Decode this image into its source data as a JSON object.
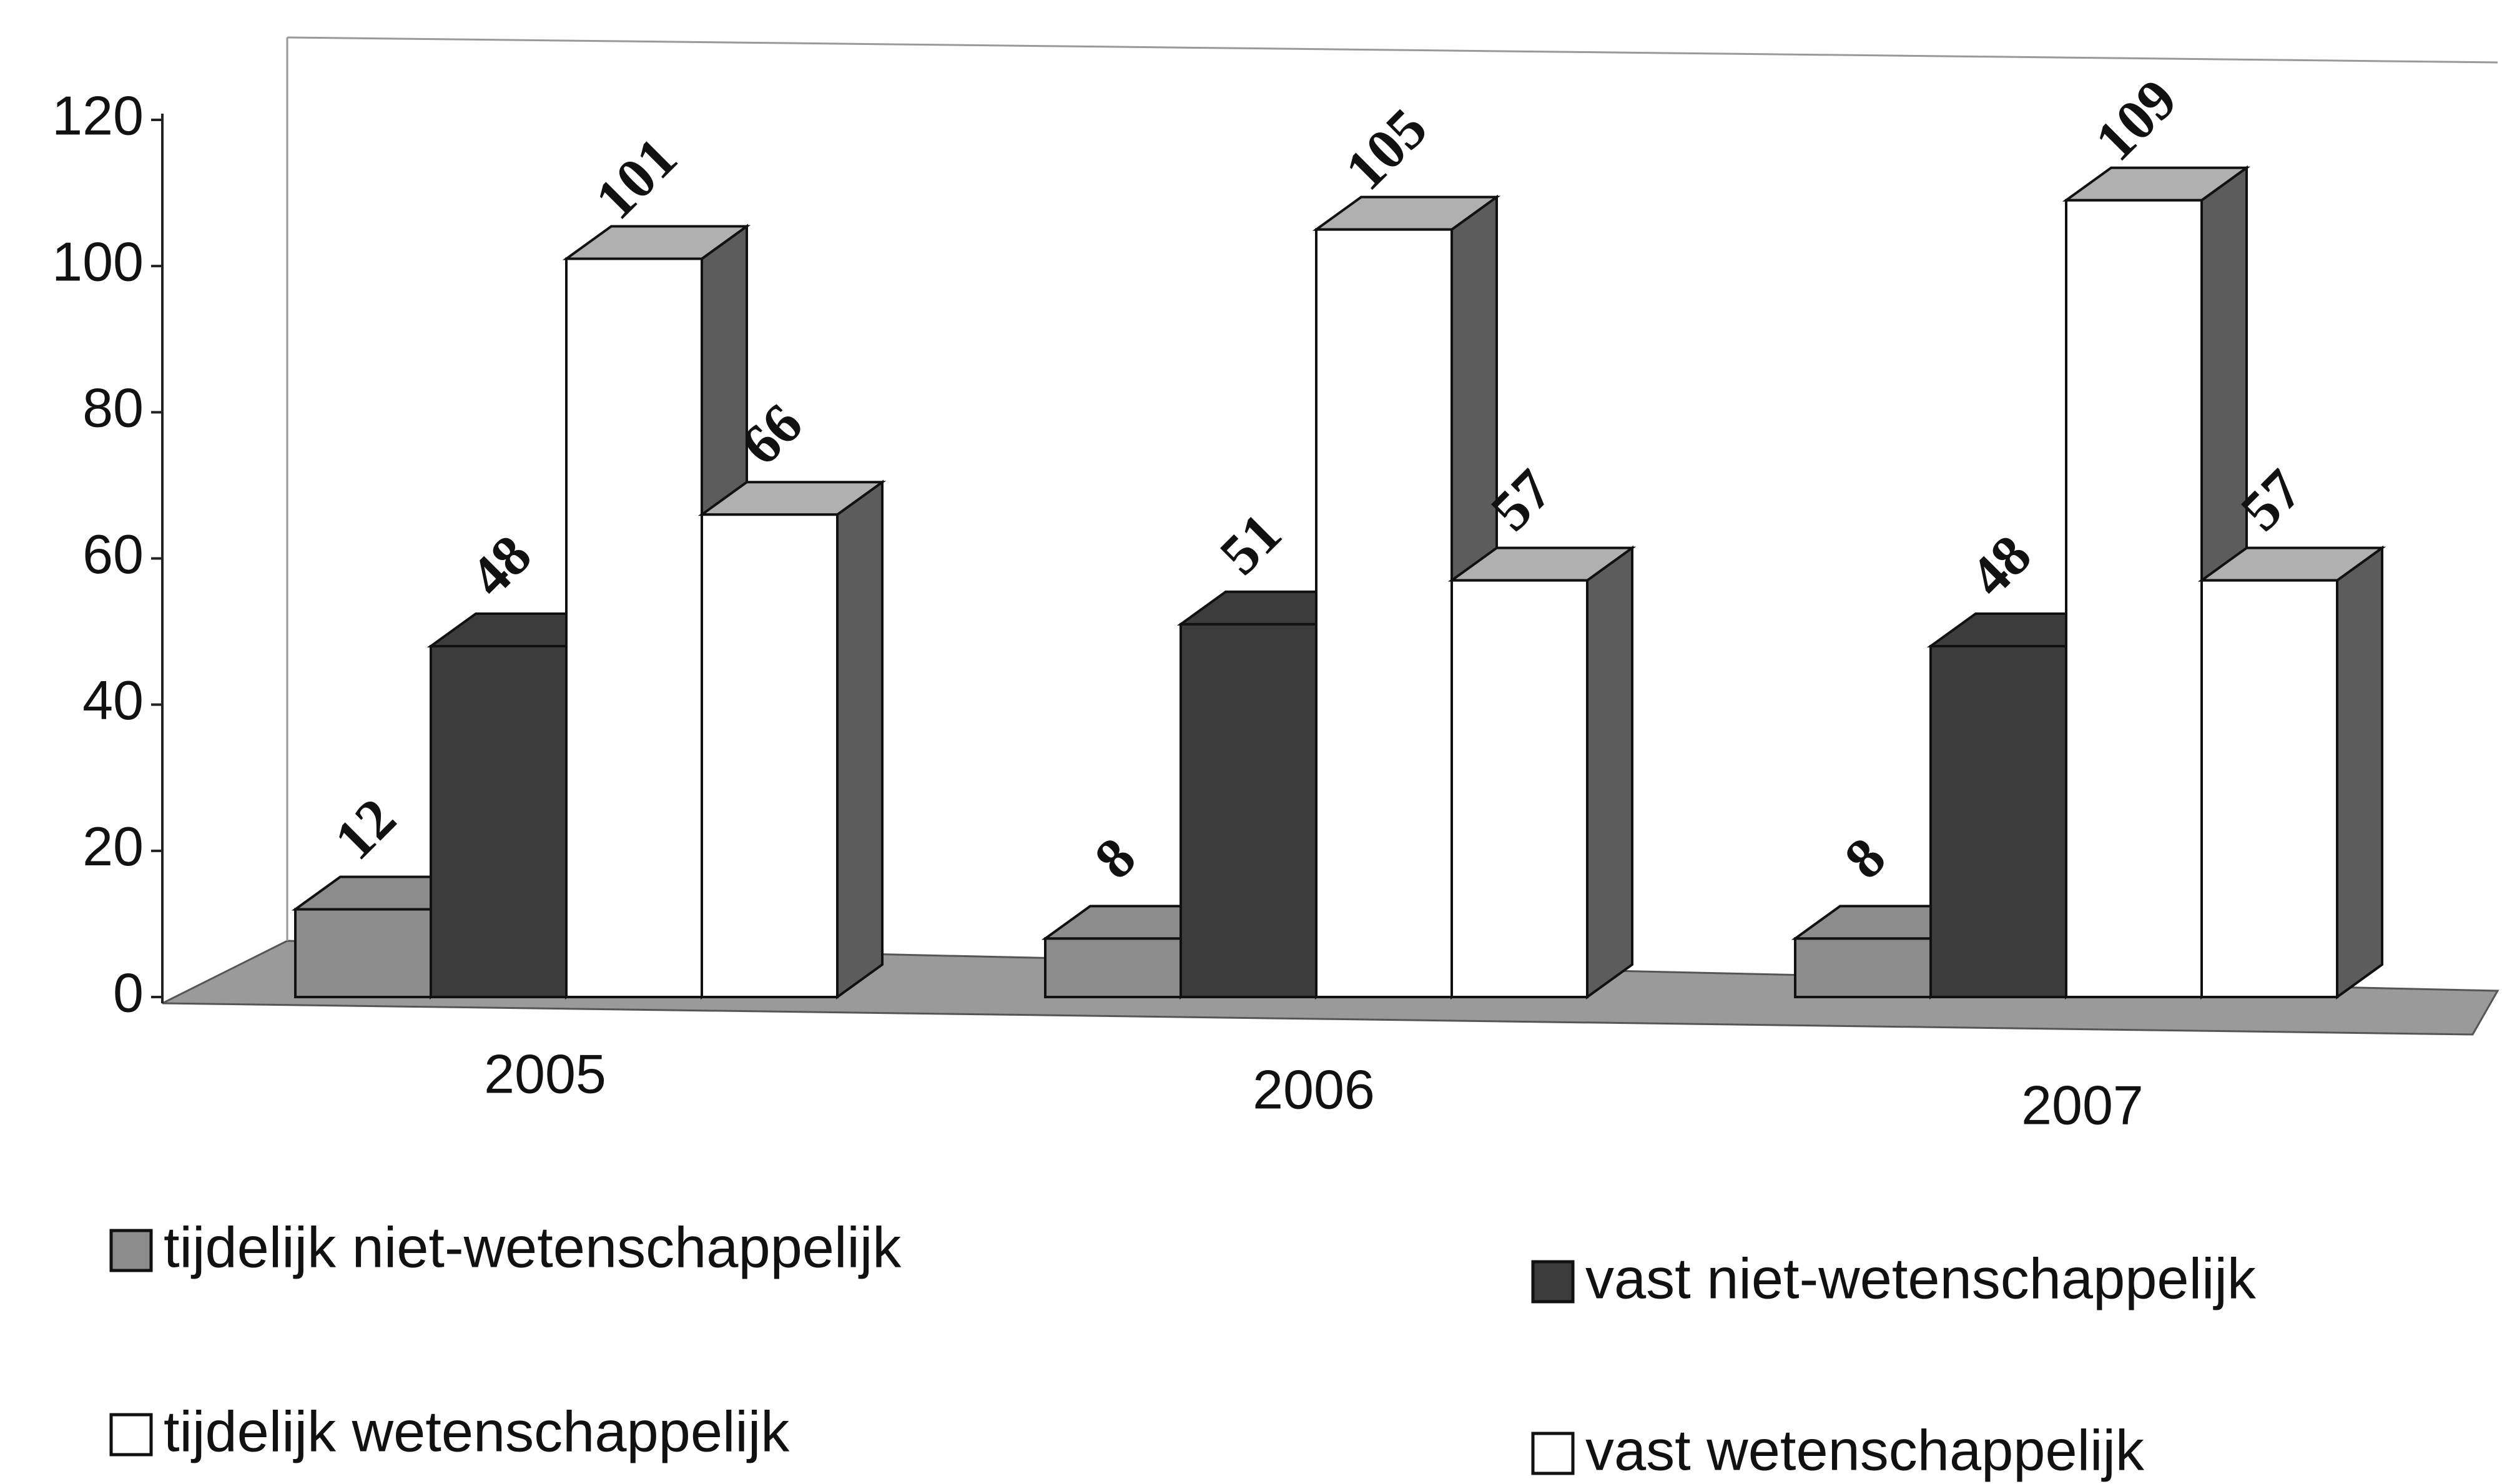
{
  "chart_data": {
    "type": "bar3d",
    "categories": [
      "2005",
      "2006",
      "2007"
    ],
    "series": [
      {
        "name": "tijdelijk niet-wetenschappelijk",
        "color": "#8c8c8c",
        "values": [
          12,
          8,
          8
        ]
      },
      {
        "name": "vast niet-wetenschappelijk",
        "color": "#3c3c3c",
        "values": [
          48,
          51,
          48
        ]
      },
      {
        "name": "tijdelijk wetenschappelijk",
        "color": "#ffffff",
        "values": [
          101,
          105,
          109
        ]
      },
      {
        "name": "vast wetenschappelijk",
        "color": "#ffffff",
        "values": [
          66,
          57,
          57
        ]
      }
    ],
    "ylim": [
      0,
      120
    ],
    "yticks": [
      0,
      20,
      40,
      60,
      80,
      100,
      120
    ],
    "legend": "bottom"
  }
}
